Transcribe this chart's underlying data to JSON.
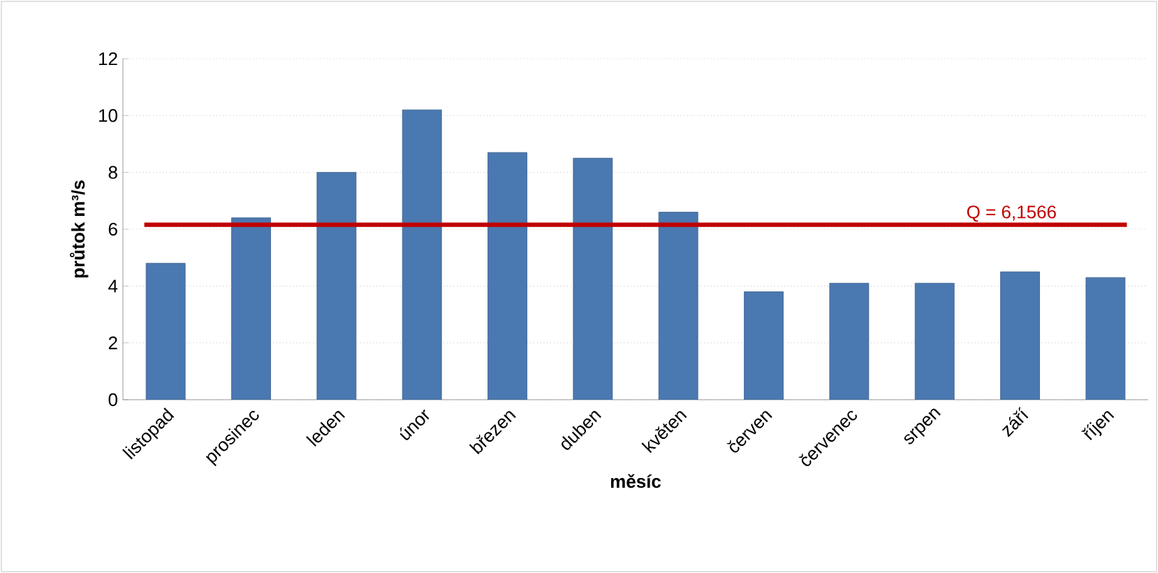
{
  "chart_data": {
    "type": "bar",
    "xlabel": "měsíc",
    "ylabel": "průtok m³/s",
    "categories": [
      "listopad",
      "prosinec",
      "leden",
      "únor",
      "březen",
      "duben",
      "květen",
      "červen",
      "červenec",
      "srpen",
      "září",
      "říjen"
    ],
    "values": [
      4.8,
      6.4,
      8.0,
      10.2,
      8.7,
      8.5,
      6.6,
      3.8,
      4.1,
      4.1,
      4.5,
      4.3
    ],
    "color": "#4a78b0",
    "ylim": [
      0,
      12
    ],
    "yticks": [
      0,
      2,
      4,
      6,
      8,
      10,
      12
    ],
    "grid": "y",
    "ref_lines": [
      {
        "axis": "y",
        "value": 6.1566,
        "label": "Q = 6,1566",
        "color": "#c00000"
      }
    ]
  }
}
